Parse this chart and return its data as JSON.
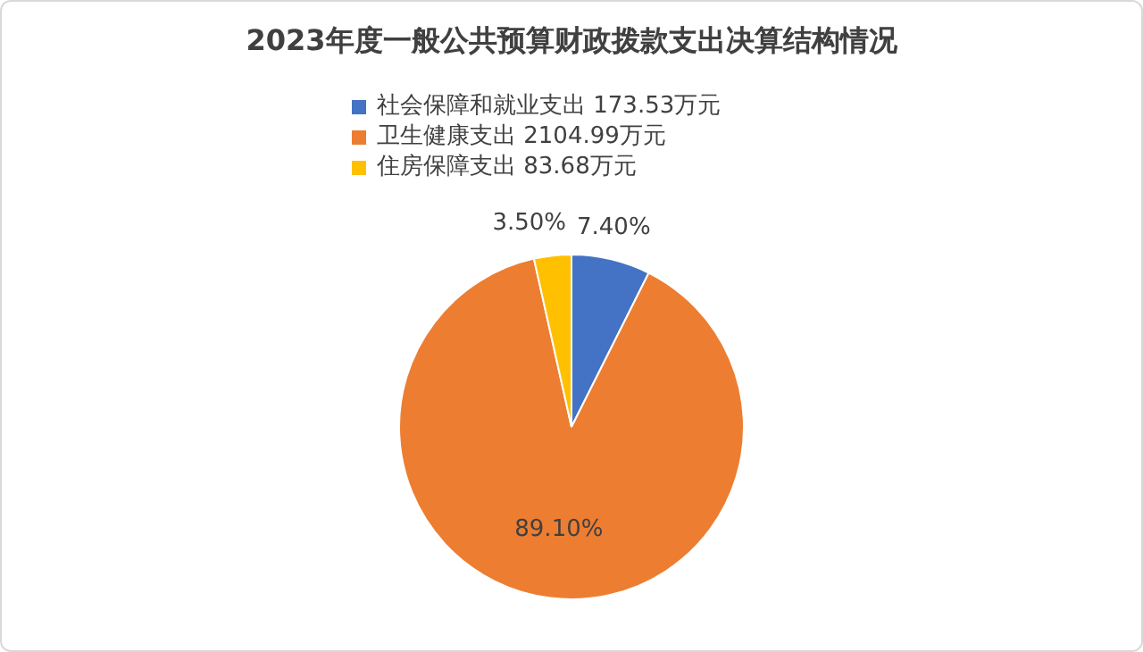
{
  "chart_data": {
    "type": "pie",
    "title": "2023年度一般公共预算财政拨款支出决算结构情况",
    "categories": [
      "社会保障和就业支出 173.53万元",
      "卫生健康支出 2104.99万元",
      "住房保障支出 83.68万元"
    ],
    "values": [
      7.4,
      89.1,
      3.5
    ],
    "colors": [
      "#4472c4",
      "#ed7d31",
      "#ffc000"
    ],
    "value_labels": [
      "7.40%",
      "89.10%",
      "3.50%"
    ],
    "legend": "top"
  }
}
